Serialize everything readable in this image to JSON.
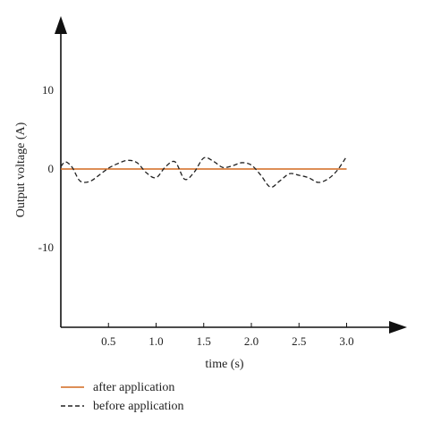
{
  "chart_data": {
    "type": "line",
    "title": "",
    "xlabel": "time (s)",
    "ylabel": "Output voltage (A)",
    "xlim": [
      0,
      3.4
    ],
    "ylim": [
      -20,
      20
    ],
    "x_ticks": [
      0.5,
      1.0,
      1.5,
      2.0,
      2.5,
      3.0
    ],
    "x_tick_labels": [
      "0.5",
      "1.0",
      "1.5",
      "2.0",
      "2.5",
      "3.0"
    ],
    "y_ticks": [
      10,
      0,
      -10
    ],
    "y_tick_labels": [
      "10",
      "0",
      "-10"
    ],
    "grid": false,
    "legend_position": "bottom-left",
    "series": [
      {
        "name": "after application",
        "color": "#d2691e",
        "style": "solid",
        "x": [
          0,
          3.0
        ],
        "y": [
          0,
          0
        ]
      },
      {
        "name": "before application",
        "color": "#222222",
        "style": "dashed",
        "x": [
          0,
          0.05,
          0.12,
          0.2,
          0.3,
          0.4,
          0.5,
          0.6,
          0.7,
          0.8,
          0.9,
          1.0,
          1.1,
          1.2,
          1.3,
          1.4,
          1.5,
          1.6,
          1.7,
          1.8,
          1.9,
          2.0,
          2.1,
          2.2,
          2.3,
          2.4,
          2.5,
          2.6,
          2.7,
          2.8,
          2.9,
          3.0
        ],
        "y": [
          0.3,
          0.9,
          0.2,
          -1.5,
          -1.6,
          -0.8,
          0.1,
          0.7,
          1.1,
          0.8,
          -0.5,
          -1.1,
          0.3,
          0.9,
          -1.3,
          -0.4,
          1.4,
          1.0,
          0.2,
          0.4,
          0.8,
          0.5,
          -0.8,
          -2.3,
          -1.5,
          -0.6,
          -0.8,
          -1.1,
          -1.7,
          -1.3,
          -0.2,
          1.6
        ]
      }
    ]
  }
}
